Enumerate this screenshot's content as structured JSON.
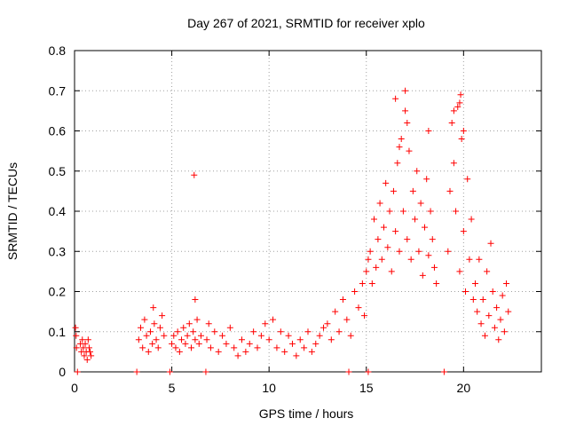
{
  "chart_data": {
    "type": "scatter",
    "title": "Day 267 of 2021, SRMTID for receiver xplo",
    "xlabel": "GPS time / hours",
    "ylabel": "SRMTID / TECUs",
    "xlim": [
      0,
      24
    ],
    "ylim": [
      0,
      0.8
    ],
    "x_ticks": [
      0,
      5,
      10,
      15,
      20
    ],
    "x_tick_labels": [
      "0",
      "5",
      "10",
      "15",
      "20"
    ],
    "y_ticks": [
      0,
      0.1,
      0.2,
      0.3,
      0.4,
      0.5,
      0.6,
      0.7,
      0.8
    ],
    "y_tick_labels": [
      "0",
      "0.1",
      "0.2",
      "0.3",
      "0.4",
      "0.5",
      "0.6",
      "0.7",
      "0.8"
    ],
    "grid": true,
    "colors": {
      "points": "#ff0000",
      "axes": "#000000",
      "grid": "#a0a0a0"
    },
    "series": [
      {
        "name": "SRMTID",
        "marker": "plus",
        "x": [
          0.05,
          0.08,
          0.1,
          0.3,
          0.35,
          0.4,
          0.45,
          0.5,
          0.55,
          0.6,
          0.65,
          0.7,
          0.75,
          0.8,
          0.85,
          3.3,
          3.4,
          3.5,
          3.6,
          3.7,
          3.8,
          3.9,
          4.0,
          4.1,
          4.2,
          4.3,
          4.4,
          4.5,
          4.6,
          4.05,
          5.0,
          5.1,
          5.2,
          5.3,
          5.4,
          5.5,
          5.6,
          5.7,
          5.8,
          5.9,
          6.0,
          6.1,
          6.2,
          6.3,
          6.4,
          6.5,
          6.15,
          6.2,
          6.8,
          6.9,
          7.0,
          7.2,
          7.4,
          7.6,
          7.8,
          8.0,
          8.2,
          8.4,
          8.6,
          8.8,
          9.0,
          9.2,
          9.4,
          9.6,
          9.8,
          10.0,
          10.2,
          10.4,
          10.6,
          10.8,
          11.0,
          11.2,
          11.4,
          11.6,
          11.8,
          12.0,
          12.2,
          12.4,
          12.6,
          12.8,
          13.0,
          13.2,
          13.4,
          13.6,
          13.8,
          14.0,
          14.2,
          14.4,
          14.6,
          14.8,
          15.0,
          14.9,
          15.1,
          15.2,
          15.3,
          15.4,
          15.5,
          15.6,
          15.7,
          15.8,
          15.9,
          16.0,
          16.1,
          16.2,
          16.3,
          16.4,
          16.5,
          16.6,
          16.7,
          16.8,
          16.9,
          17.0,
          17.1,
          17.2,
          17.3,
          17.4,
          17.5,
          17.6,
          17.7,
          17.8,
          17.9,
          18.0,
          18.1,
          18.2,
          18.3,
          18.4,
          18.5,
          18.6,
          16.5,
          17.0,
          17.1,
          16.7,
          18.2,
          19.2,
          19.3,
          19.4,
          19.5,
          19.6,
          19.7,
          19.8,
          19.9,
          20.0,
          20.1,
          20.2,
          20.3,
          20.4,
          20.5,
          19.8,
          19.85,
          19.5,
          20.0,
          20.6,
          20.7,
          20.8,
          20.9,
          21.0,
          21.1,
          21.2,
          21.3,
          21.4,
          21.5,
          21.6,
          21.7,
          21.8,
          21.9,
          22.0,
          22.1,
          22.2,
          22.3,
          0.15,
          3.2,
          4.9,
          6.75,
          14.1,
          15.1,
          19.0
        ],
        "y": [
          0.11,
          0.09,
          0.06,
          0.07,
          0.05,
          0.08,
          0.06,
          0.04,
          0.07,
          0.05,
          0.03,
          0.08,
          0.06,
          0.05,
          0.04,
          0.08,
          0.11,
          0.06,
          0.13,
          0.09,
          0.05,
          0.1,
          0.07,
          0.12,
          0.08,
          0.06,
          0.11,
          0.14,
          0.09,
          0.16,
          0.07,
          0.09,
          0.06,
          0.1,
          0.05,
          0.08,
          0.11,
          0.07,
          0.09,
          0.12,
          0.06,
          0.1,
          0.08,
          0.13,
          0.07,
          0.09,
          0.49,
          0.18,
          0.08,
          0.12,
          0.06,
          0.1,
          0.05,
          0.09,
          0.07,
          0.11,
          0.06,
          0.04,
          0.08,
          0.05,
          0.07,
          0.1,
          0.06,
          0.09,
          0.12,
          0.08,
          0.13,
          0.06,
          0.1,
          0.05,
          0.09,
          0.07,
          0.04,
          0.08,
          0.06,
          0.1,
          0.05,
          0.07,
          0.09,
          0.11,
          0.12,
          0.08,
          0.15,
          0.1,
          0.18,
          0.13,
          0.09,
          0.2,
          0.16,
          0.22,
          0.25,
          0.14,
          0.28,
          0.3,
          0.22,
          0.38,
          0.26,
          0.33,
          0.42,
          0.28,
          0.36,
          0.47,
          0.31,
          0.4,
          0.25,
          0.45,
          0.35,
          0.52,
          0.3,
          0.58,
          0.4,
          0.65,
          0.33,
          0.55,
          0.28,
          0.45,
          0.38,
          0.5,
          0.3,
          0.42,
          0.24,
          0.36,
          0.48,
          0.29,
          0.4,
          0.33,
          0.26,
          0.22,
          0.68,
          0.7,
          0.62,
          0.56,
          0.6,
          0.3,
          0.45,
          0.62,
          0.52,
          0.4,
          0.66,
          0.25,
          0.58,
          0.35,
          0.2,
          0.48,
          0.28,
          0.38,
          0.18,
          0.67,
          0.69,
          0.65,
          0.6,
          0.22,
          0.15,
          0.28,
          0.12,
          0.18,
          0.09,
          0.25,
          0.14,
          0.32,
          0.2,
          0.11,
          0.16,
          0.08,
          0.13,
          0.19,
          0.1,
          0.22,
          0.15,
          0.0,
          0.0,
          0.0,
          0.0,
          0.0,
          0.0,
          0.0
        ]
      }
    ]
  }
}
